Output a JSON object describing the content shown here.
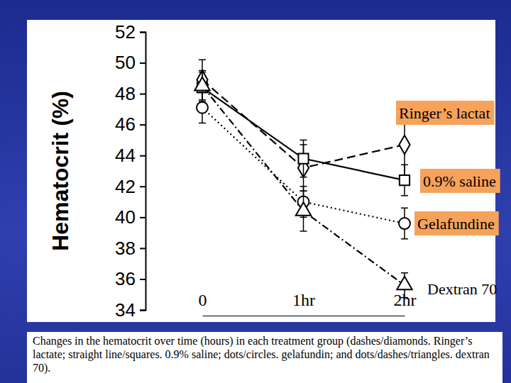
{
  "chart_data": {
    "type": "line",
    "y_label": "Hematocrit (%)",
    "caption": "Changes in the hematocrit over time (hours) in each treatment group (dashes/diamonds. Ringer’s lactate; straight line/squares. 0.9% saline; dots/circles. gelafundin; and dots/dashes/triangles. dextran 70).",
    "categories": [
      "0",
      "1hr",
      "2hr"
    ],
    "ylim": [
      34,
      52
    ],
    "yticks": [
      34,
      36,
      38,
      40,
      42,
      44,
      46,
      48,
      50,
      52
    ],
    "series": [
      {
        "name": "Ringer’s lactat",
        "color": "#000000",
        "marker": "diamond",
        "line_style": "dashed",
        "values": [
          48.9,
          43.2,
          44.7
        ],
        "errors": [
          1.3,
          1.5,
          2.0
        ]
      },
      {
        "name": "0.9% saline",
        "color": "#000000",
        "marker": "square",
        "line_style": "solid",
        "values": [
          48.4,
          43.8,
          42.4
        ],
        "errors": [
          1.0,
          1.2,
          1.0
        ]
      },
      {
        "name": "Gelafundine",
        "color": "#000000",
        "marker": "circle",
        "line_style": "dotted",
        "values": [
          47.1,
          41.0,
          39.6
        ],
        "errors": [
          1.0,
          1.0,
          1.0
        ]
      },
      {
        "name": "Dextran 70",
        "color": "#000000",
        "marker": "triangle",
        "line_style": "dashdot",
        "values": [
          48.5,
          40.4,
          35.6
        ],
        "errors": [
          1.0,
          1.3,
          0.8
        ]
      }
    ]
  }
}
